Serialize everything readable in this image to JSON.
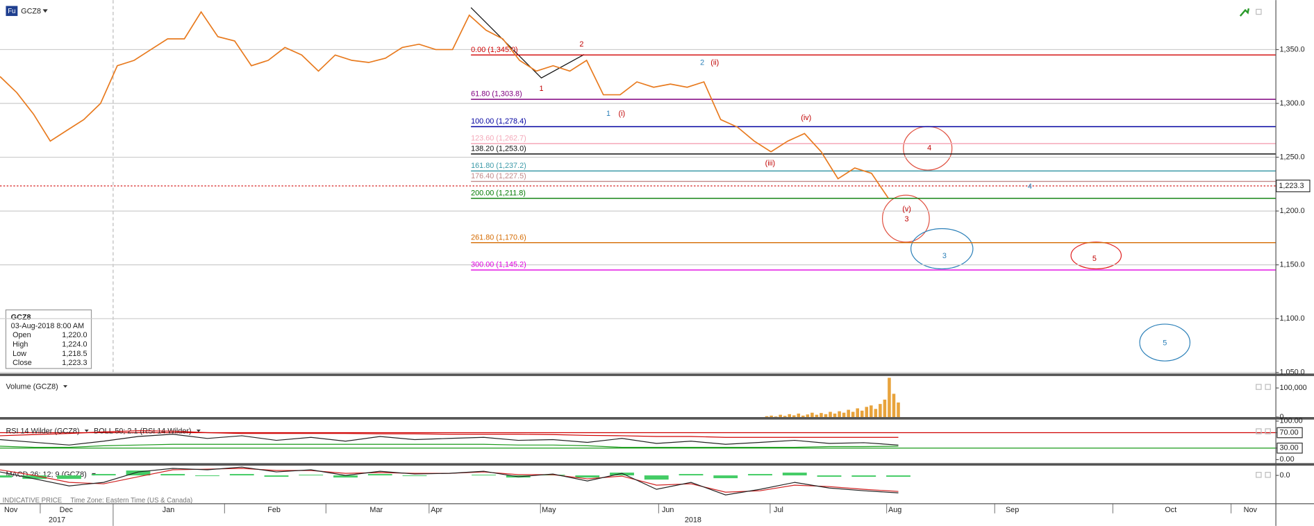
{
  "header": {
    "icon": "Fu",
    "symbol": "GCZ8"
  },
  "info_box": {
    "symbol": "GCZ8",
    "datetime": "03-Aug-2018 8:00 AM",
    "rows": [
      [
        "Open",
        "1,220.0"
      ],
      [
        "High",
        "1,224.0"
      ],
      [
        "Low",
        "1,218.5"
      ],
      [
        "Close",
        "1,223.3"
      ]
    ]
  },
  "footer": {
    "source": "INDICATIVE PRICE",
    "timezone": "Time Zone: Eastern Time (US & Canada)"
  },
  "x_axis": {
    "months": [
      "Nov",
      "Dec",
      "Jan",
      "Feb",
      "Mar",
      "Apr",
      "May",
      "Jun",
      "Jul",
      "Aug",
      "Sep",
      "Oct",
      "Nov"
    ],
    "years": [
      "2017",
      "2018"
    ]
  },
  "chart_data": [
    {
      "type": "line",
      "title": "GCZ8",
      "grid": true,
      "ylim": [
        1049,
        1396
      ],
      "yticks": [
        {
          "value": 1050,
          "label": "1,050.0"
        },
        {
          "value": 1100,
          "label": "1,100.0"
        },
        {
          "value": 1150,
          "label": "1,150.0"
        },
        {
          "value": 1200,
          "label": "1,200.0"
        },
        {
          "value": 1250,
          "label": "1,250.0"
        },
        {
          "value": 1300,
          "label": "1,300.0"
        },
        {
          "value": 1350,
          "label": "1,350.0"
        }
      ],
      "series": [
        {
          "color": "#e87a1e",
          "values": [
            1325,
            1310,
            1290,
            1265,
            1275,
            1285,
            1300,
            1335,
            1340,
            1350,
            1360,
            1360,
            1385,
            1362,
            1358,
            1335,
            1340,
            1352,
            1345,
            1330,
            1345,
            1340,
            1338,
            1342,
            1352,
            1355,
            1350,
            1350,
            1382,
            1368,
            1360,
            1340,
            1330,
            1335,
            1330,
            1340,
            1308,
            1308,
            1320,
            1315,
            1318,
            1315,
            1320,
            1285,
            1278,
            1265,
            1255,
            1265,
            1272,
            1255,
            1230,
            1240,
            1235,
            1212
          ]
        }
      ],
      "last_price": {
        "value": 1223.3,
        "label": "1,223.3",
        "color": "#d00000"
      },
      "fib_levels": [
        {
          "label": "0.00 (1,345.0)",
          "value": 1345.0,
          "color": "#d00000"
        },
        {
          "label": "61.80 (1,303.8)",
          "value": 1303.8,
          "color": "#800080"
        },
        {
          "label": "100.00 (1,278.4)",
          "value": 1278.4,
          "color": "#0000a0"
        },
        {
          "label": "123.60 (1,262.7)",
          "value": 1262.7,
          "color": "#f4a8b8"
        },
        {
          "label": "138.20 (1,253.0)",
          "value": 1253.0,
          "color": "#111111"
        },
        {
          "label": "161.80 (1,237.2)",
          "value": 1237.2,
          "color": "#3c9aa8"
        },
        {
          "label": "176.40 (1,227.5)",
          "value": 1227.5,
          "color": "#c08a8a"
        },
        {
          "label": "200.00 (1,211.8)",
          "value": 1211.8,
          "color": "#007a00"
        },
        {
          "label": "261.80 (1,170.6)",
          "value": 1170.6,
          "color": "#d46a00"
        },
        {
          "label": "300.00 (1,145.2)",
          "value": 1145.2,
          "color": "#e000e0"
        }
      ],
      "annotations": [
        {
          "text": "1",
          "color": "#c00000"
        },
        {
          "text": "2",
          "color": "#c00000"
        },
        {
          "text": "1",
          "color": "#2a7fb8"
        },
        {
          "text": "(i)",
          "color": "#c00000"
        },
        {
          "text": "2",
          "color": "#2a7fb8"
        },
        {
          "text": "(ii)",
          "color": "#c00000"
        },
        {
          "text": "(iii)",
          "color": "#c00000"
        },
        {
          "text": "(iv)",
          "color": "#c00000"
        },
        {
          "text": "(v)",
          "color": "#c00000"
        },
        {
          "text": "3",
          "color": "#c00000"
        },
        {
          "text": "4",
          "color": "#c00000"
        },
        {
          "text": "4",
          "color": "#2a7fb8"
        },
        {
          "text": "3",
          "color": "#2a7fb8"
        },
        {
          "text": "5",
          "color": "#c00000"
        },
        {
          "text": "5",
          "color": "#2a7fb8"
        }
      ]
    },
    {
      "type": "bar",
      "title": "Volume (GCZ8)",
      "ylim": [
        0,
        141000
      ],
      "yticks": [
        0,
        {
          "value": 100000,
          "label": "100,000"
        }
      ],
      "series": [
        {
          "color": "#e8a33c",
          "values": [
            3000,
            5000,
            2000,
            8000,
            4000,
            10000,
            6000,
            12000,
            5000,
            9000,
            15000,
            8000,
            14000,
            10000,
            18000,
            12000,
            20000,
            15000,
            25000,
            18000,
            30000,
            22000,
            35000,
            40000,
            28000,
            45000,
            60000,
            135000,
            80000,
            50000
          ]
        }
      ]
    },
    {
      "type": "line",
      "title": "RSI 14 Wilder (GCZ8)",
      "subtitle": "BOLL 50; 2.1 (RSI 14 Wilder)",
      "tick_boxes": [
        70,
        30
      ],
      "ylim": [
        -9,
        104
      ],
      "yticks": [
        {
          "value": 0,
          "label": "0.00"
        },
        {
          "value": 30,
          "label": "30.00"
        },
        {
          "value": 70,
          "label": "70.00"
        },
        {
          "value": 100,
          "label": "100.00"
        }
      ],
      "series": [
        {
          "color": "#d00000",
          "values": [
            62,
            65,
            68,
            72,
            75,
            74,
            70,
            68,
            68,
            68,
            68,
            67,
            67,
            66,
            66,
            66,
            65,
            63,
            62,
            60,
            60,
            58,
            58,
            58,
            58,
            58,
            58
          ]
        },
        {
          "color": "#1a9a1a",
          "values": [
            35,
            32,
            32,
            36,
            38,
            40,
            40,
            40,
            40,
            40,
            40,
            40,
            40,
            40,
            40,
            38,
            38,
            36,
            32,
            32,
            32,
            32,
            32,
            32,
            34,
            34,
            35
          ]
        },
        {
          "color": "#222222",
          "values": [
            52,
            45,
            38,
            48,
            60,
            66,
            55,
            62,
            50,
            58,
            48,
            60,
            52,
            55,
            58,
            50,
            52,
            45,
            55,
            42,
            48,
            40,
            45,
            50,
            42,
            44,
            38
          ]
        }
      ]
    },
    {
      "type": "line",
      "title": "MACD 26; 12; 9 (GCZ8)",
      "ylim": [
        -40,
        14
      ],
      "yticks": [
        {
          "value": 0,
          "label": "0.0"
        }
      ],
      "series": [
        {
          "type": "bar",
          "color": "#44cc66",
          "values": [
            -3,
            -5,
            -5,
            2,
            7,
            2,
            -1,
            2,
            -2,
            1,
            -3,
            2,
            -1,
            0,
            1,
            -3,
            1,
            -3,
            4,
            -6,
            2,
            -4,
            2,
            4,
            -2,
            -2,
            -2
          ]
        },
        {
          "color": "#d02020",
          "values": [
            8,
            0,
            -10,
            -12,
            -2,
            8,
            9,
            10,
            7,
            7,
            3,
            4,
            3,
            3,
            5,
            1,
            1,
            -5,
            -1,
            -14,
            -12,
            -24,
            -22,
            -14,
            -16,
            -20,
            -23
          ]
        },
        {
          "color": "#222222",
          "values": [
            5,
            -5,
            -15,
            -10,
            5,
            10,
            8,
            12,
            5,
            8,
            0,
            6,
            2,
            3,
            6,
            -2,
            2,
            -8,
            3,
            -20,
            -10,
            -28,
            -20,
            -10,
            -18,
            -22,
            -25
          ]
        }
      ]
    }
  ]
}
